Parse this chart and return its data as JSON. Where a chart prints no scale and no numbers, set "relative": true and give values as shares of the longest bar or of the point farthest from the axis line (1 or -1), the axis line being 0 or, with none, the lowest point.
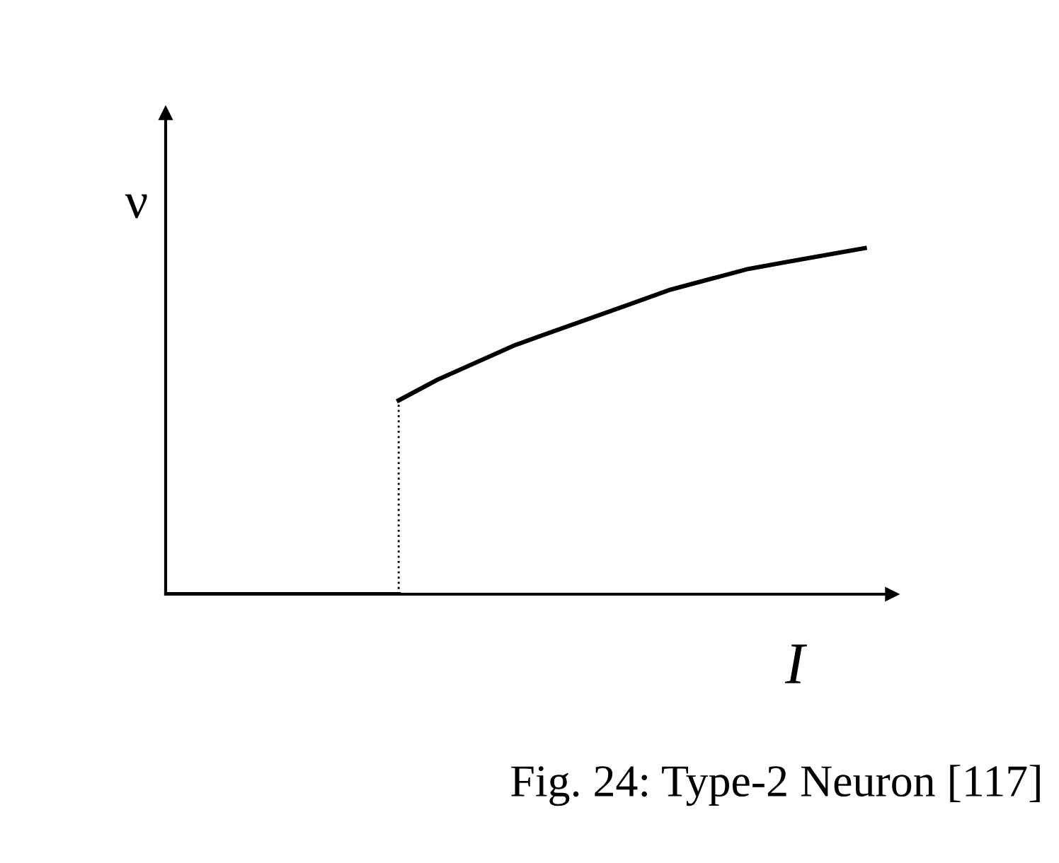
{
  "chart_data": {
    "type": "line",
    "relative": true,
    "xlabel": "I",
    "ylabel": "ν",
    "categories": [
      null,
      null,
      null,
      null,
      null,
      null,
      null,
      null,
      null,
      null,
      null,
      null,
      null,
      null,
      null,
      null,
      null,
      null,
      null
    ],
    "series": [
      {
        "color": "#000000",
        "values": [
          0,
          0,
          0,
          0,
          0,
          0,
          0,
          null,
          null,
          null,
          null,
          null,
          null,
          null,
          null,
          null,
          null,
          null,
          null
        ]
      },
      {
        "color": "#000000",
        "values": [
          null,
          null,
          null,
          null,
          null,
          null,
          0.56,
          0.62,
          0.67,
          0.72,
          0.76,
          0.8,
          0.84,
          0.88,
          0.91,
          0.94,
          0.96,
          0.98,
          1.0
        ]
      }
    ],
    "annotations": [
      "Fig. 24: Type-2 Neuron [117]"
    ],
    "legend": false,
    "marker": "none",
    "line_style": "solid",
    "tick_labels": false
  }
}
